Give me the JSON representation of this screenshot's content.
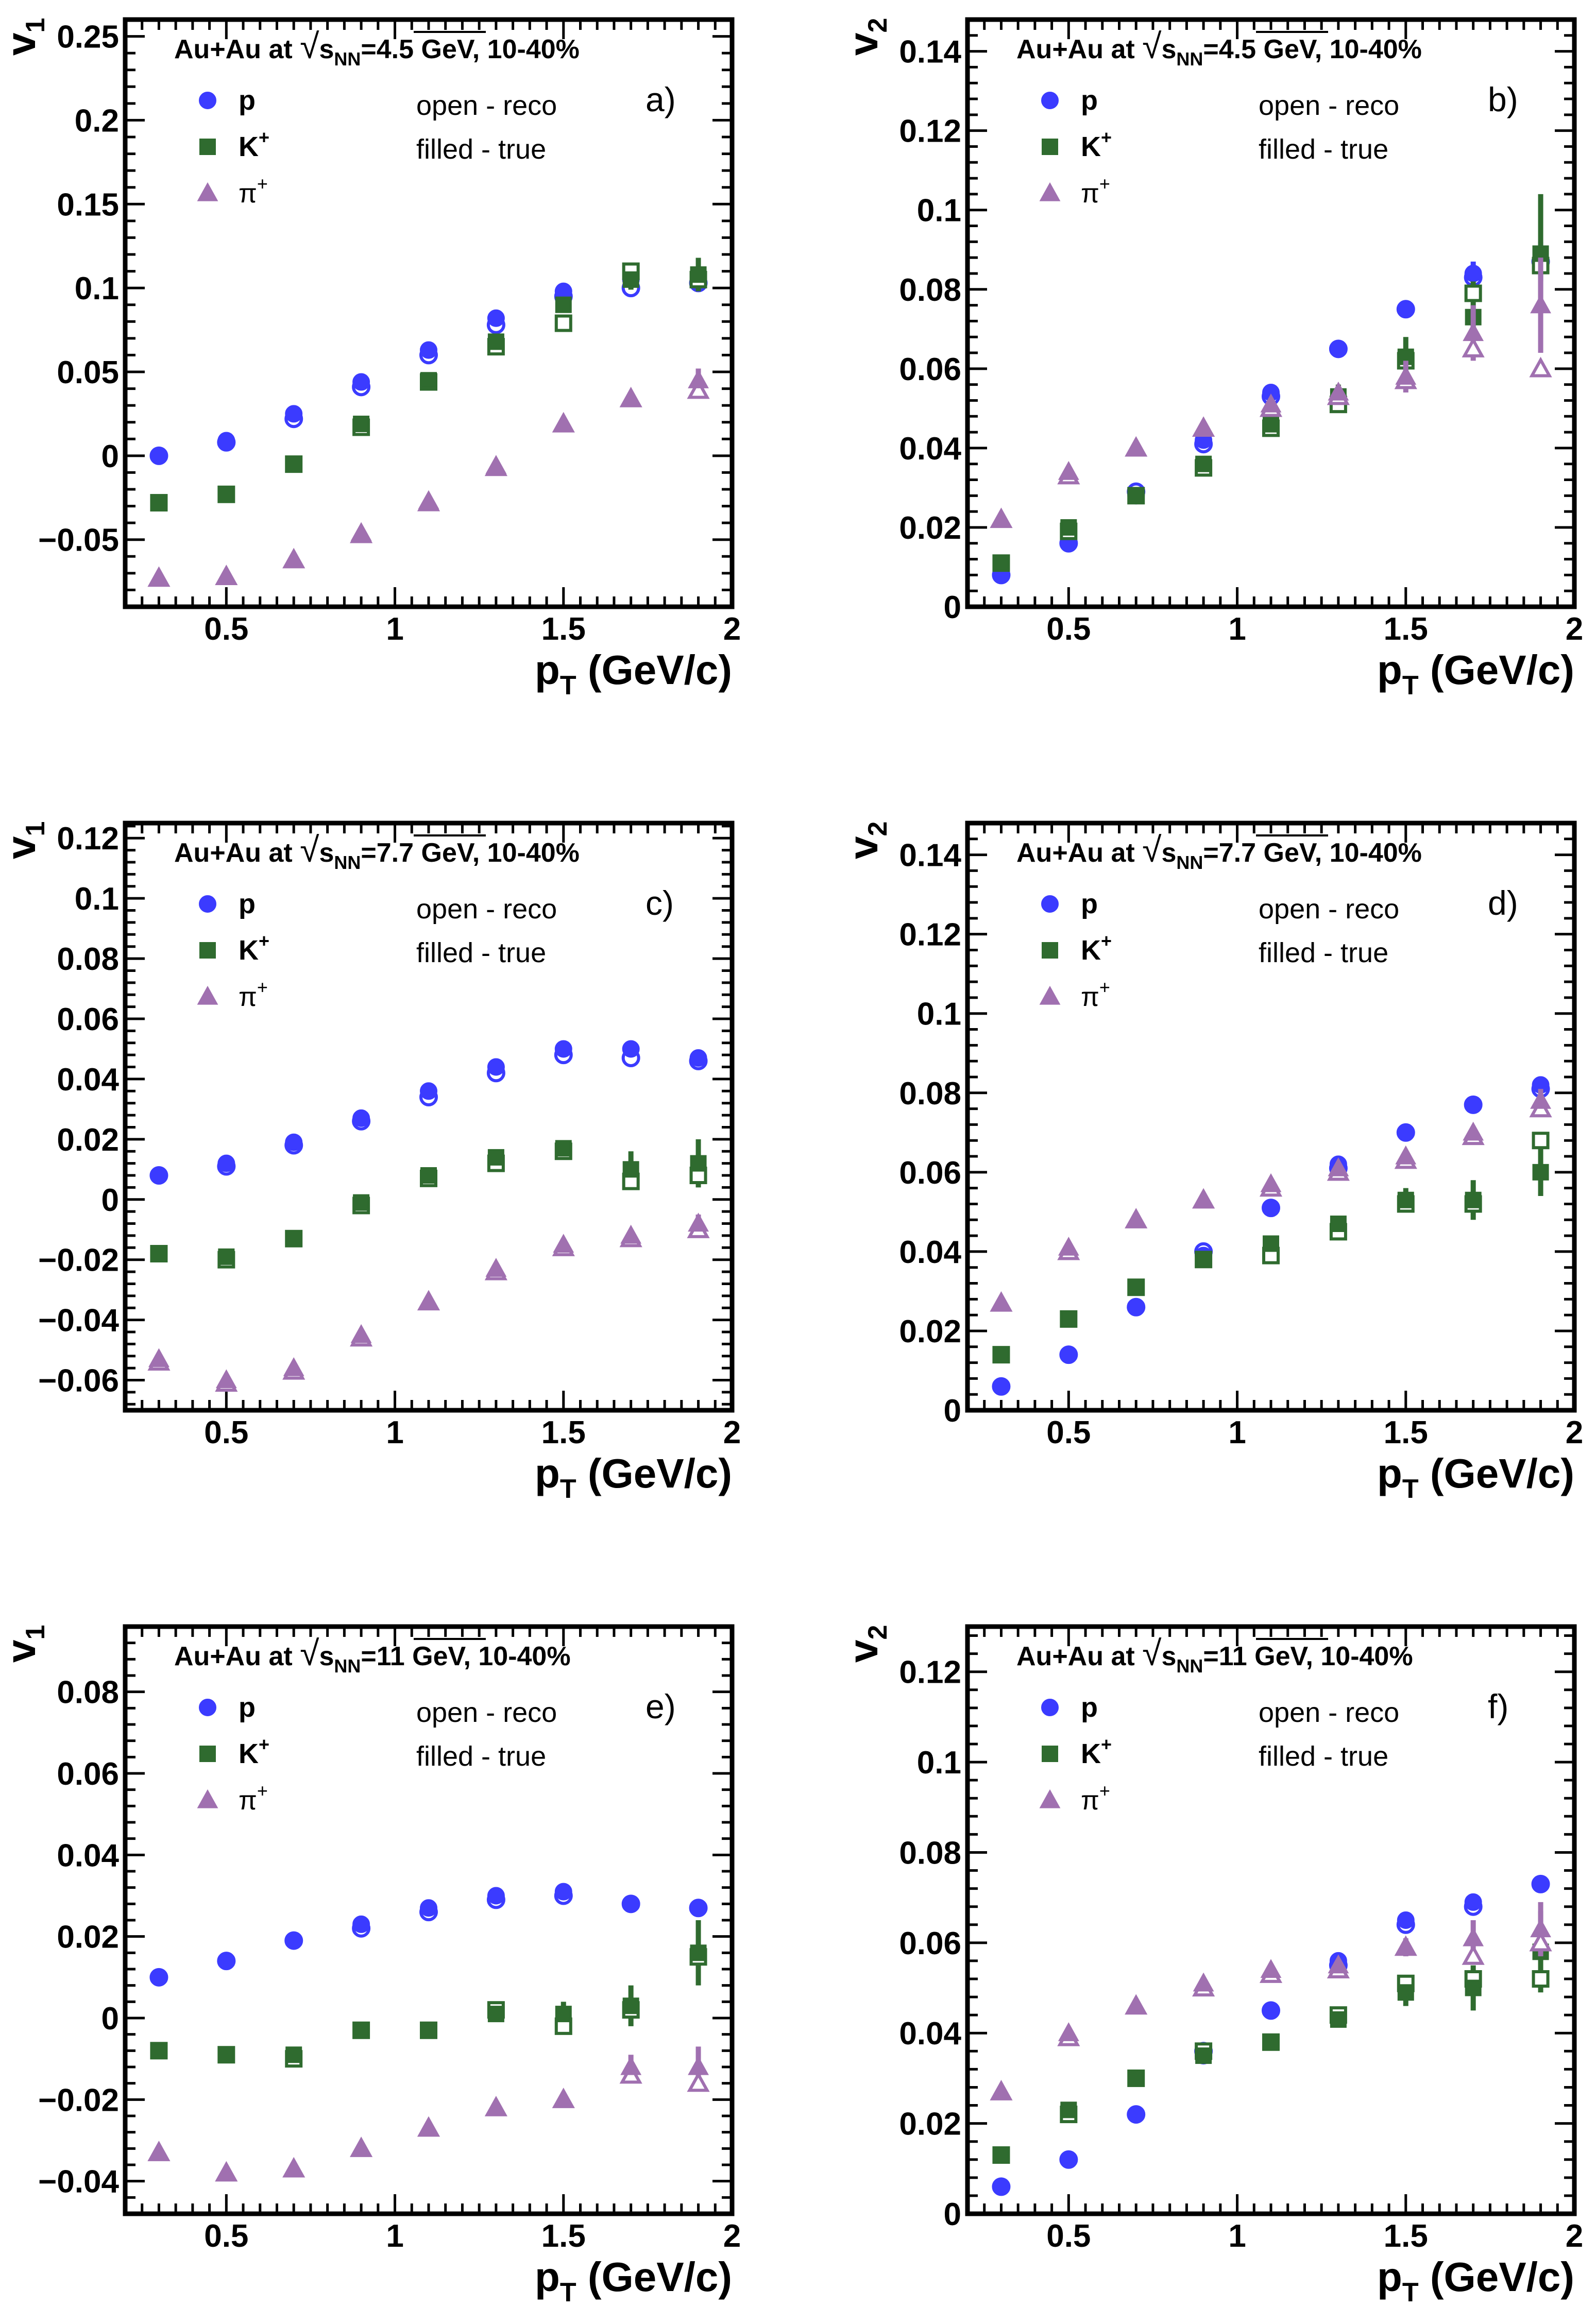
{
  "figure": {
    "title_prefix": "Au+Au at ",
    "sqrt_symbol": "√",
    "s_letter": "s",
    "nn_subscript": "NN",
    "title_centrality": ", 10-40%",
    "x_axis_main": "p",
    "x_axis_sub": "T",
    "x_axis_unit": " (GeV/c)",
    "legend_open": "open - reco",
    "legend_filled": "filled - true",
    "species": [
      {
        "key": "p",
        "label": "p",
        "sup": "",
        "color": "#3b3bff",
        "marker": "circle"
      },
      {
        "key": "K",
        "label": "K",
        "sup": "+",
        "color": "#2f6b2f",
        "marker": "square"
      },
      {
        "key": "pi",
        "label": "π",
        "sup": "+",
        "color": "#a070b0",
        "marker": "triangle"
      }
    ]
  },
  "chart_data": [
    {
      "type": "scatter",
      "panel_label": "a)",
      "energy": "=4.5 GeV",
      "ylabel": "v",
      "ylabel_sub": "1",
      "xlim": [
        0.2,
        2.0
      ],
      "ylim": [
        -0.09,
        0.26
      ],
      "xticks": [
        0.5,
        1,
        1.5,
        2
      ],
      "xtick_labels": [
        "0.5",
        "1",
        "1.5",
        "2"
      ],
      "yticks": [
        -0.05,
        0,
        0.05,
        0.1,
        0.15,
        0.2,
        0.25
      ],
      "ytick_labels": [
        "−0.05",
        "0",
        "0.05",
        "0.1",
        "0.15",
        "0.2",
        "0.25"
      ],
      "x": [
        0.3,
        0.5,
        0.7,
        0.9,
        1.1,
        1.3,
        1.5,
        1.7,
        1.9
      ],
      "series": [
        {
          "name": "p",
          "true": [
            0.0,
            0.009,
            0.025,
            0.044,
            0.063,
            0.082,
            0.098,
            0.105,
            0.104
          ],
          "reco": [
            0.0,
            0.008,
            0.022,
            0.041,
            0.06,
            0.078,
            0.095,
            0.1,
            0.103
          ],
          "err": [
            0,
            0,
            0,
            0,
            0,
            0,
            0,
            0.003,
            0.004
          ]
        },
        {
          "name": "K+",
          "true": [
            -0.028,
            -0.023,
            -0.005,
            0.019,
            0.045,
            0.068,
            0.09,
            0.105,
            0.108
          ],
          "reco": [
            -0.028,
            -0.023,
            -0.005,
            0.017,
            0.044,
            0.065,
            0.079,
            0.11,
            0.105
          ],
          "err": [
            0,
            0,
            0,
            0.003,
            0.003,
            0.004,
            0.004,
            0.006,
            0.01
          ]
        },
        {
          "name": "pi+",
          "true": [
            -0.073,
            -0.072,
            -0.062,
            -0.046,
            -0.027,
            -0.006,
            0.019,
            0.034,
            0.045
          ],
          "reco": [
            -0.073,
            -0.072,
            -0.062,
            -0.047,
            -0.028,
            -0.007,
            0.019,
            0.034,
            0.039
          ],
          "err": [
            0,
            0,
            0,
            0,
            0,
            0,
            0,
            0.003,
            0.007
          ]
        }
      ]
    },
    {
      "type": "scatter",
      "panel_label": "b)",
      "energy": "=4.5 GeV",
      "ylabel": "v",
      "ylabel_sub": "2",
      "xlim": [
        0.2,
        2.0
      ],
      "ylim": [
        0,
        0.148
      ],
      "xticks": [
        0.5,
        1,
        1.5,
        2
      ],
      "xtick_labels": [
        "0.5",
        "1",
        "1.5",
        "2"
      ],
      "yticks": [
        0,
        0.02,
        0.04,
        0.06,
        0.08,
        0.1,
        0.12,
        0.14
      ],
      "ytick_labels": [
        "0",
        "0.02",
        "0.04",
        "0.06",
        "0.08",
        "0.1",
        "0.12",
        "0.14"
      ],
      "x": [
        0.3,
        0.5,
        0.7,
        0.9,
        1.1,
        1.3,
        1.5,
        1.7,
        1.9
      ],
      "series": [
        {
          "name": "p",
          "true": [
            0.008,
            0.016,
            0.028,
            0.042,
            0.054,
            0.065,
            0.075,
            0.084,
            0.087
          ],
          "reco": [
            0.008,
            0.016,
            0.029,
            0.041,
            0.053,
            0.065,
            0.075,
            0.083,
            0.087
          ],
          "err": [
            0,
            0,
            0,
            0,
            0,
            0,
            0,
            0.003,
            0.005
          ]
        },
        {
          "name": "K+",
          "true": [
            0.011,
            0.02,
            0.028,
            0.036,
            0.046,
            0.053,
            0.063,
            0.073,
            0.089
          ],
          "reco": [
            0.011,
            0.019,
            0.028,
            0.035,
            0.045,
            0.051,
            0.062,
            0.079,
            0.086
          ],
          "err": [
            0,
            0,
            0,
            0,
            0,
            0.003,
            0.005,
            0.009,
            0.015
          ]
        },
        {
          "name": "pi+",
          "true": [
            0.022,
            0.034,
            0.04,
            0.045,
            0.051,
            0.054,
            0.058,
            0.069,
            0.076
          ],
          "reco": [
            0.022,
            0.033,
            0.04,
            0.045,
            0.05,
            0.053,
            0.057,
            0.065,
            0.06
          ],
          "err": [
            0,
            0,
            0,
            0,
            0,
            0,
            0.004,
            0.007,
            0.012
          ]
        }
      ]
    },
    {
      "type": "scatter",
      "panel_label": "c)",
      "energy": "=7.7 GeV",
      "ylabel": "v",
      "ylabel_sub": "1",
      "xlim": [
        0.2,
        2.0
      ],
      "ylim": [
        -0.07,
        0.125
      ],
      "xticks": [
        0.5,
        1,
        1.5,
        2
      ],
      "xtick_labels": [
        "0.5",
        "1",
        "1.5",
        "2"
      ],
      "yticks": [
        -0.06,
        -0.04,
        -0.02,
        0,
        0.02,
        0.04,
        0.06,
        0.08,
        0.1,
        0.12
      ],
      "ytick_labels": [
        "−0.06",
        "−0.04",
        "−0.02",
        "0",
        "0.02",
        "0.04",
        "0.06",
        "0.08",
        "0.1",
        "0.12"
      ],
      "x": [
        0.3,
        0.5,
        0.7,
        0.9,
        1.1,
        1.3,
        1.5,
        1.7,
        1.9
      ],
      "series": [
        {
          "name": "p",
          "true": [
            0.008,
            0.012,
            0.019,
            0.027,
            0.036,
            0.044,
            0.05,
            0.05,
            0.047
          ],
          "reco": [
            0.008,
            0.011,
            0.018,
            0.026,
            0.034,
            0.042,
            0.048,
            0.047,
            0.046
          ],
          "err": [
            0,
            0,
            0,
            0,
            0,
            0,
            0,
            0,
            0
          ]
        },
        {
          "name": "K+",
          "true": [
            -0.018,
            -0.019,
            -0.013,
            -0.001,
            0.008,
            0.014,
            0.017,
            0.01,
            0.012
          ],
          "reco": [
            -0.018,
            -0.02,
            -0.013,
            -0.002,
            0.007,
            0.012,
            0.016,
            0.006,
            0.008
          ],
          "err": [
            0,
            0,
            0,
            0,
            0,
            0,
            0.002,
            0.006,
            0.008
          ]
        },
        {
          "name": "pi+",
          "true": [
            -0.053,
            -0.06,
            -0.056,
            -0.045,
            -0.034,
            -0.023,
            -0.015,
            -0.012,
            -0.008
          ],
          "reco": [
            -0.054,
            -0.061,
            -0.057,
            -0.046,
            -0.034,
            -0.024,
            -0.016,
            -0.013,
            -0.01
          ],
          "err": [
            0,
            0,
            0,
            0,
            0,
            0,
            0,
            0,
            0.003
          ]
        }
      ]
    },
    {
      "type": "scatter",
      "panel_label": "d)",
      "energy": "=7.7 GeV",
      "ylabel": "v",
      "ylabel_sub": "2",
      "xlim": [
        0.2,
        2.0
      ],
      "ylim": [
        0,
        0.148
      ],
      "xticks": [
        0.5,
        1,
        1.5,
        2
      ],
      "xtick_labels": [
        "0.5",
        "1",
        "1.5",
        "2"
      ],
      "yticks": [
        0,
        0.02,
        0.04,
        0.06,
        0.08,
        0.1,
        0.12,
        0.14
      ],
      "ytick_labels": [
        "0",
        "0.02",
        "0.04",
        "0.06",
        "0.08",
        "0.1",
        "0.12",
        "0.14"
      ],
      "x": [
        0.3,
        0.5,
        0.7,
        0.9,
        1.1,
        1.3,
        1.5,
        1.7,
        1.9
      ],
      "series": [
        {
          "name": "p",
          "true": [
            0.006,
            0.014,
            0.026,
            0.039,
            0.051,
            0.062,
            0.07,
            0.077,
            0.082
          ],
          "reco": [
            0.006,
            0.014,
            0.026,
            0.04,
            0.051,
            0.061,
            0.07,
            0.077,
            0.081
          ],
          "err": [
            0,
            0,
            0,
            0,
            0,
            0,
            0,
            0,
            0
          ]
        },
        {
          "name": "K+",
          "true": [
            0.014,
            0.023,
            0.031,
            0.038,
            0.042,
            0.047,
            0.053,
            0.053,
            0.06
          ],
          "reco": [
            0.014,
            0.023,
            0.031,
            0.038,
            0.039,
            0.045,
            0.052,
            0.052,
            0.068
          ],
          "err": [
            0,
            0,
            0,
            0,
            0,
            0,
            0.003,
            0.005,
            0.006
          ]
        },
        {
          "name": "pi+",
          "true": [
            0.027,
            0.041,
            0.048,
            0.053,
            0.057,
            0.061,
            0.064,
            0.07,
            0.078
          ],
          "reco": [
            0.027,
            0.04,
            0.048,
            0.053,
            0.056,
            0.06,
            0.063,
            0.069,
            0.076
          ],
          "err": [
            0,
            0,
            0,
            0,
            0,
            0,
            0,
            0,
            0.003
          ]
        }
      ]
    },
    {
      "type": "scatter",
      "panel_label": "e)",
      "energy": "=11 GeV",
      "ylabel": "v",
      "ylabel_sub": "1",
      "xlim": [
        0.2,
        2.0
      ],
      "ylim": [
        -0.048,
        0.096
      ],
      "xticks": [
        0.5,
        1,
        1.5,
        2
      ],
      "xtick_labels": [
        "0.5",
        "1",
        "1.5",
        "2"
      ],
      "yticks": [
        -0.04,
        -0.02,
        0,
        0.02,
        0.04,
        0.06,
        0.08
      ],
      "ytick_labels": [
        "−0.04",
        "−0.02",
        "0",
        "0.02",
        "0.04",
        "0.06",
        "0.08"
      ],
      "x": [
        0.3,
        0.5,
        0.7,
        0.9,
        1.1,
        1.3,
        1.5,
        1.7,
        1.9
      ],
      "series": [
        {
          "name": "p",
          "true": [
            0.01,
            0.014,
            0.019,
            0.023,
            0.027,
            0.03,
            0.031,
            0.028,
            0.027
          ],
          "reco": [
            0.01,
            0.014,
            0.019,
            0.022,
            0.026,
            0.029,
            0.03,
            0.028,
            0.027
          ],
          "err": [
            0,
            0,
            0,
            0,
            0,
            0,
            0,
            0,
            0
          ]
        },
        {
          "name": "K+",
          "true": [
            -0.008,
            -0.009,
            -0.009,
            -0.003,
            -0.003,
            0.001,
            0.001,
            0.003,
            0.016
          ],
          "reco": [
            -0.008,
            -0.009,
            -0.01,
            -0.003,
            -0.003,
            0.002,
            -0.002,
            0.002,
            0.015
          ],
          "err": [
            0,
            0,
            0,
            0,
            0,
            0,
            0.003,
            0.005,
            0.008
          ]
        },
        {
          "name": "pi+",
          "true": [
            -0.033,
            -0.038,
            -0.037,
            -0.032,
            -0.027,
            -0.022,
            -0.02,
            -0.012,
            -0.012
          ],
          "reco": [
            -0.033,
            -0.038,
            -0.037,
            -0.032,
            -0.027,
            -0.022,
            -0.02,
            -0.014,
            -0.016
          ],
          "err": [
            0,
            0,
            0,
            0,
            0,
            0,
            0,
            0.003,
            0.005
          ]
        }
      ]
    },
    {
      "type": "scatter",
      "panel_label": "f)",
      "energy": "=11 GeV",
      "ylabel": "v",
      "ylabel_sub": "2",
      "xlim": [
        0.2,
        2.0
      ],
      "ylim": [
        0,
        0.13
      ],
      "xticks": [
        0.5,
        1,
        1.5,
        2
      ],
      "xtick_labels": [
        "0.5",
        "1",
        "1.5",
        "2"
      ],
      "yticks": [
        0,
        0.02,
        0.04,
        0.06,
        0.08,
        0.1,
        0.12
      ],
      "ytick_labels": [
        "0",
        "0.02",
        "0.04",
        "0.06",
        "0.08",
        "0.1",
        "0.12"
      ],
      "x": [
        0.3,
        0.5,
        0.7,
        0.9,
        1.1,
        1.3,
        1.5,
        1.7,
        1.9
      ],
      "series": [
        {
          "name": "p",
          "true": [
            0.006,
            0.012,
            0.022,
            0.035,
            0.045,
            0.056,
            0.065,
            0.069,
            0.073
          ],
          "reco": [
            0.006,
            0.012,
            0.022,
            0.036,
            0.045,
            0.055,
            0.064,
            0.068,
            0.073
          ],
          "err": [
            0,
            0,
            0,
            0,
            0,
            0,
            0,
            0,
            0
          ]
        },
        {
          "name": "K+",
          "true": [
            0.013,
            0.023,
            0.03,
            0.035,
            0.038,
            0.043,
            0.049,
            0.05,
            0.058
          ],
          "reco": [
            0.013,
            0.022,
            0.03,
            0.036,
            0.038,
            0.044,
            0.051,
            0.052,
            0.052
          ],
          "err": [
            0,
            0,
            0,
            0,
            0,
            0,
            0.003,
            0.005,
            0.009
          ]
        },
        {
          "name": "pi+",
          "true": [
            0.027,
            0.04,
            0.046,
            0.051,
            0.054,
            0.055,
            0.059,
            0.061,
            0.063
          ],
          "reco": [
            0.027,
            0.039,
            0.046,
            0.05,
            0.053,
            0.054,
            0.059,
            0.057,
            0.06
          ],
          "err": [
            0,
            0,
            0,
            0,
            0,
            0,
            0.002,
            0.004,
            0.006
          ]
        }
      ]
    }
  ]
}
